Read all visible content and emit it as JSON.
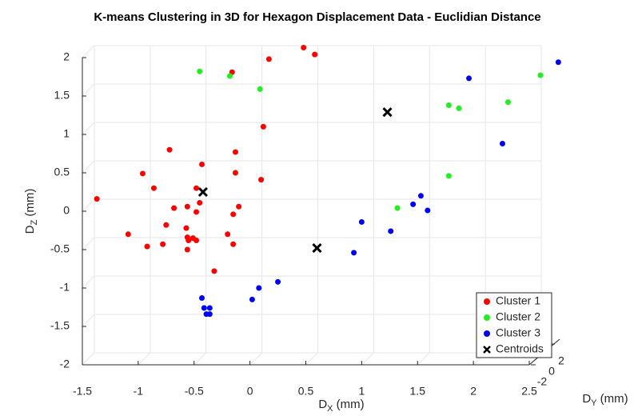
{
  "chart_data": {
    "type": "scatter3d",
    "title": "K-means Clustering in 3D for Hexagon Displacement Data - Euclidian Distance",
    "xlabel": [
      "D",
      "X",
      " (mm)"
    ],
    "ylabel": [
      "D",
      "Y",
      " (mm)"
    ],
    "zlabel": [
      "D",
      "Z",
      " (mm)"
    ],
    "xlim": [
      -1.5,
      2.5
    ],
    "xticks": [
      -1.5,
      -1,
      -0.5,
      0,
      0.5,
      1,
      1.5,
      2,
      2.5
    ],
    "ylim": [
      -2,
      2
    ],
    "yticks": [
      -2,
      0,
      2
    ],
    "zlim": [
      -2,
      2
    ],
    "zticks": [
      -2,
      -1.5,
      -1,
      -0.5,
      0,
      0.5,
      1,
      1.5,
      2
    ],
    "grid": true,
    "legend": "bottom-right",
    "series": [
      {
        "name": "Cluster 1",
        "color": "#ff0000",
        "marker": "dot",
        "x": [
          -1.37,
          -1.09,
          -0.96,
          -0.92,
          -0.86,
          -0.78,
          -0.75,
          -0.72,
          -0.68,
          -0.56,
          -0.48,
          -0.45,
          -0.48,
          -0.43,
          -0.57,
          -0.56,
          -0.55,
          -0.51,
          -0.48,
          -0.56,
          -0.32,
          -0.2,
          -0.15,
          -0.15,
          -0.1,
          -0.13,
          -0.13,
          0.1,
          0.12,
          -0.16,
          0.17,
          0.48,
          0.58
        ],
        "z": [
          0.16,
          -0.3,
          0.49,
          -0.46,
          0.3,
          -0.43,
          -0.18,
          0.8,
          0.04,
          0.06,
          -0.01,
          0.11,
          0.3,
          0.61,
          -0.22,
          -0.34,
          -0.38,
          -0.35,
          -0.38,
          -0.5,
          -0.78,
          -0.3,
          -0.43,
          -0.04,
          0.06,
          0.77,
          0.5,
          0.41,
          1.1,
          1.81,
          1.98,
          2.13,
          2.04
        ]
      },
      {
        "name": "Cluster 2",
        "color": "#22ee22",
        "marker": "dot",
        "x": [
          -0.45,
          -0.18,
          0.09,
          1.32,
          1.78,
          1.78,
          1.87,
          2.31,
          2.6
        ],
        "z": [
          1.82,
          1.76,
          1.59,
          0.04,
          0.46,
          1.38,
          1.34,
          1.42,
          1.77
        ]
      },
      {
        "name": "Cluster 3",
        "color": "#0000ff",
        "marker": "dot",
        "x": [
          -0.43,
          -0.41,
          -0.36,
          -0.39,
          -0.36,
          0.02,
          0.08,
          0.25,
          0.93,
          1.0,
          1.26,
          1.46,
          1.53,
          1.59,
          1.96,
          2.26,
          2.76
        ],
        "z": [
          -1.13,
          -1.26,
          -1.26,
          -1.34,
          -1.34,
          -1.15,
          -1.0,
          -0.92,
          -0.54,
          -0.14,
          -0.26,
          0.09,
          0.2,
          0.01,
          1.73,
          0.88,
          1.94
        ]
      },
      {
        "name": "Centroids",
        "color": "#000000",
        "marker": "cross",
        "x": [
          -0.42,
          0.6,
          1.23
        ],
        "z": [
          0.25,
          -0.48,
          1.29
        ]
      }
    ]
  }
}
